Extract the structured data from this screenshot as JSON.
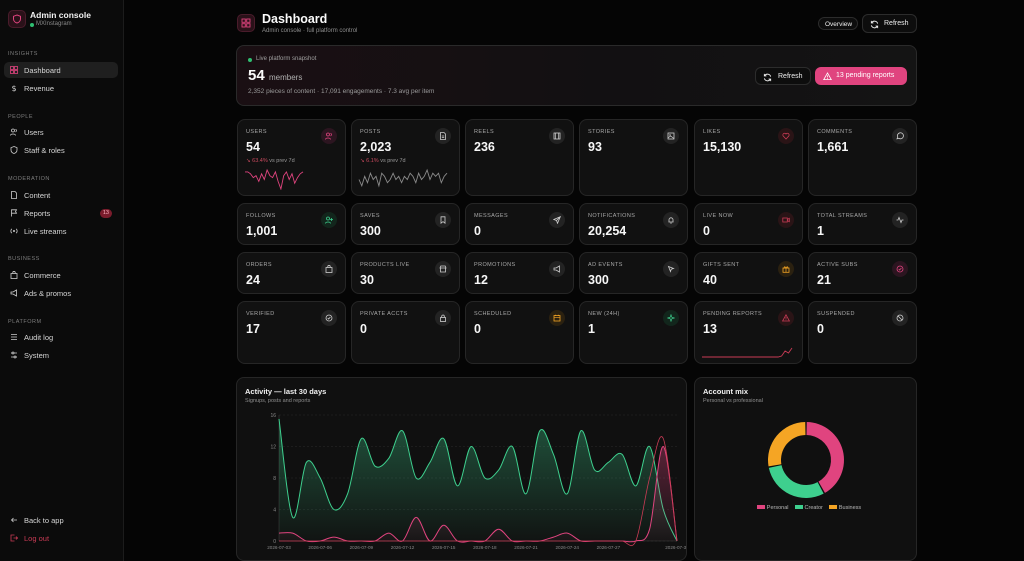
{
  "brand": {
    "title": "Admin console",
    "subtitle": "MXInstagram",
    "status_color": "#2fbf71"
  },
  "sidebar": {
    "sections": [
      {
        "title": "INSIGHTS"
      },
      {
        "title": "PEOPLE"
      },
      {
        "title": "MODERATION"
      },
      {
        "title": "BUSINESS"
      },
      {
        "title": "PLATFORM"
      }
    ],
    "items": [
      {
        "label": "Dashboard",
        "icon": "grid-icon",
        "active": true
      },
      {
        "label": "Revenue",
        "icon": "dollar-icon"
      },
      {
        "label": "Users",
        "icon": "users-icon"
      },
      {
        "label": "Staff & roles",
        "icon": "shield-icon"
      },
      {
        "label": "Content",
        "icon": "file-icon"
      },
      {
        "label": "Reports",
        "icon": "flag-icon",
        "badge": "13"
      },
      {
        "label": "Live streams",
        "icon": "broadcast-icon"
      },
      {
        "label": "Commerce",
        "icon": "bag-icon"
      },
      {
        "label": "Ads & promos",
        "icon": "megaphone-icon"
      },
      {
        "label": "Audit log",
        "icon": "list-icon"
      },
      {
        "label": "System",
        "icon": "sliders-icon"
      }
    ],
    "footer": {
      "back_label": "Back to app",
      "logout_label": "Log out"
    }
  },
  "header": {
    "title": "Dashboard",
    "subtitle": "Admin console · full platform control",
    "overview_label": "Overview",
    "refresh_label": "Refresh"
  },
  "snapshot": {
    "label": "Live platform snapshot",
    "count": "54",
    "unit": "members",
    "description": "2,352 pieces of content · 17,091 engagements · 7.3 avg per item",
    "refresh_label": "Refresh",
    "pending_label": "13 pending reports"
  },
  "stats": [
    {
      "label": "USERS",
      "value": "54",
      "icon": "users-icon",
      "trend_value": "↘ 63.4%",
      "trend_text": "vs prev 7d"
    },
    {
      "label": "POSTS",
      "value": "2,023",
      "icon": "file-icon",
      "trend_value": "↘ 6.1%",
      "trend_text": "vs prev 7d"
    },
    {
      "label": "REELS",
      "value": "236",
      "icon": "film-icon"
    },
    {
      "label": "STORIES",
      "value": "93",
      "icon": "image-icon"
    },
    {
      "label": "LIKES",
      "value": "15,130",
      "icon": "heart-icon"
    },
    {
      "label": "COMMENTS",
      "value": "1,661",
      "icon": "comment-icon"
    },
    {
      "label": "FOLLOWS",
      "value": "1,001",
      "icon": "user-plus-icon"
    },
    {
      "label": "SAVES",
      "value": "300",
      "icon": "bookmark-icon"
    },
    {
      "label": "MESSAGES",
      "value": "0",
      "icon": "send-icon"
    },
    {
      "label": "NOTIFICATIONS",
      "value": "20,254",
      "icon": "bell-icon"
    },
    {
      "label": "LIVE NOW",
      "value": "0",
      "icon": "video-icon"
    },
    {
      "label": "TOTAL STREAMS",
      "value": "1",
      "icon": "activity-icon"
    },
    {
      "label": "ORDERS",
      "value": "24",
      "icon": "bag-icon"
    },
    {
      "label": "PRODUCTS LIVE",
      "value": "30",
      "icon": "store-icon"
    },
    {
      "label": "PROMOTIONS",
      "value": "12",
      "icon": "megaphone-icon"
    },
    {
      "label": "AD EVENTS",
      "value": "300",
      "icon": "cursor-icon"
    },
    {
      "label": "GIFTS SENT",
      "value": "40",
      "icon": "gift-icon"
    },
    {
      "label": "ACTIVE SUBS",
      "value": "21",
      "icon": "check-circle-icon"
    },
    {
      "label": "VERIFIED",
      "value": "17",
      "icon": "badge-check-icon"
    },
    {
      "label": "PRIVATE ACCTS",
      "value": "0",
      "icon": "lock-icon"
    },
    {
      "label": "SCHEDULED",
      "value": "0",
      "icon": "calendar-icon"
    },
    {
      "label": "NEW (24H)",
      "value": "1",
      "icon": "sparkle-icon"
    },
    {
      "label": "PENDING REPORTS",
      "value": "13",
      "icon": "alert-icon"
    },
    {
      "label": "SUSPENDED",
      "value": "0",
      "icon": "ban-icon"
    }
  ],
  "colors": {
    "accent": "#e0447f",
    "green": "#3ecf8e",
    "amber": "#f5a524",
    "danger": "#c93b55"
  },
  "chart_data": [
    {
      "type": "area",
      "title": "Activity — last 30 days",
      "subtitle": "Signups, posts and reports",
      "xlabel": "",
      "ylabel": "",
      "ylim": [
        0,
        16
      ],
      "yticks": [
        0,
        4,
        8,
        12,
        16
      ],
      "x_ticks": [
        "2026-07-03",
        "2026-07-06",
        "2026-07-09",
        "2026-07-12",
        "2026-07-15",
        "2026-07-18",
        "2026-07-21",
        "2026-07-24",
        "2026-07-27",
        "2026-07-31"
      ],
      "x_count": 30,
      "grid": true,
      "series": [
        {
          "color": "#3ecf8e",
          "values": [
            15.5,
            3,
            10,
            8,
            4,
            6,
            13,
            9.5,
            10.5,
            14,
            8,
            10,
            13,
            7,
            12,
            8,
            9,
            12,
            6,
            14,
            11,
            6,
            14,
            9,
            10,
            11,
            7,
            12,
            4,
            0
          ]
        },
        {
          "color": "#e0447f",
          "values": [
            1,
            1,
            0,
            0,
            0.5,
            0,
            0,
            0,
            1,
            0,
            3,
            0,
            2,
            0,
            0,
            0,
            1.5,
            0,
            0,
            0,
            0.5,
            1,
            0,
            0,
            0,
            0,
            0,
            1.5,
            12,
            0
          ]
        },
        {
          "color": "#c93b55",
          "values": [
            0,
            0,
            0,
            0,
            0,
            0,
            0,
            0,
            0,
            0,
            0,
            0,
            0,
            0,
            0,
            0,
            0,
            0,
            0,
            0,
            0,
            0,
            0,
            0,
            0,
            0,
            0,
            8,
            13,
            0
          ]
        }
      ]
    },
    {
      "type": "pie",
      "title": "Account mix",
      "subtitle": "Personal vs professional",
      "categories": [
        "Personal",
        "Creator",
        "Business"
      ],
      "values": [
        42,
        30,
        28
      ],
      "colors": [
        "#e0447f",
        "#3ecf8e",
        "#f5a524"
      ],
      "legend": "bottom"
    }
  ]
}
